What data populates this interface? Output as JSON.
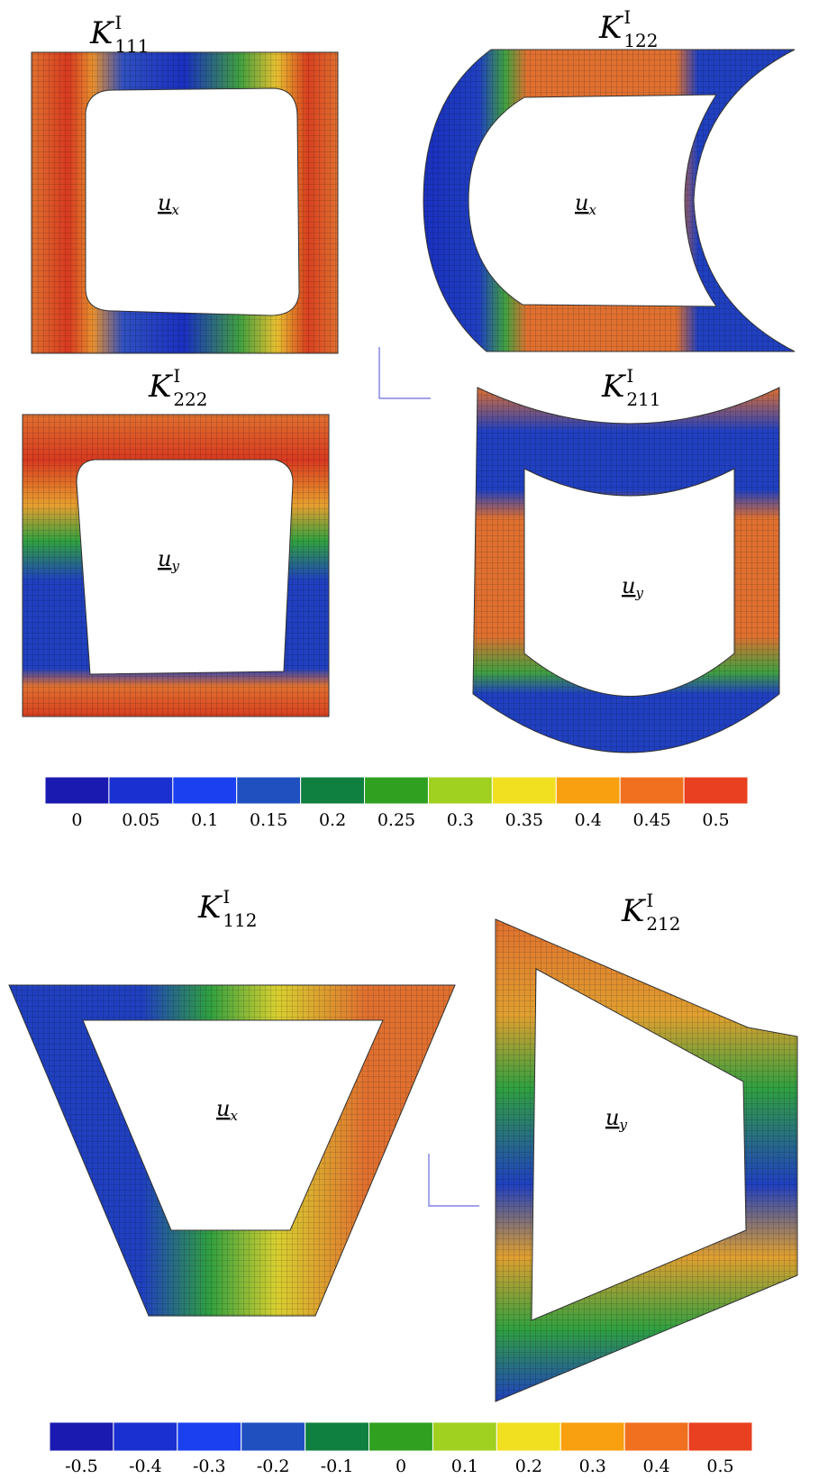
{
  "panels": [
    {
      "title": {
        "base": "K",
        "sup": "I",
        "sub": "111"
      },
      "label": {
        "base": "u",
        "sub": "x"
      }
    },
    {
      "title": {
        "base": "K",
        "sup": "I",
        "sub": "122"
      },
      "label": {
        "base": "u",
        "sub": "x"
      }
    },
    {
      "title": {
        "base": "K",
        "sup": "I",
        "sub": "222"
      },
      "label": {
        "base": "u",
        "sub": "y"
      }
    },
    {
      "title": {
        "base": "K",
        "sup": "I",
        "sub": "211"
      },
      "label": {
        "base": "u",
        "sub": "y"
      }
    },
    {
      "title": {
        "base": "K",
        "sup": "I",
        "sub": "112"
      },
      "label": {
        "base": "u",
        "sub": "x"
      }
    },
    {
      "title": {
        "base": "K",
        "sup": "I",
        "sub": "212"
      },
      "label": {
        "base": "u",
        "sub": "y"
      }
    }
  ],
  "colorbars": [
    {
      "colors": [
        "#1a1ab0",
        "#1a30d0",
        "#1a40f0",
        "#2050c0",
        "#108040",
        "#30a020",
        "#a0d020",
        "#f0e020",
        "#f8a010",
        "#f07020",
        "#e84020"
      ],
      "labels": [
        "0",
        "0.05",
        "0.1",
        "0.15",
        "0.2",
        "0.25",
        "0.3",
        "0.35",
        "0.4",
        "0.45",
        "0.5"
      ]
    },
    {
      "colors": [
        "#1a1ab0",
        "#1a30d0",
        "#1a40f0",
        "#2050c0",
        "#108040",
        "#30a020",
        "#a0d020",
        "#f0e020",
        "#f8a010",
        "#f07020",
        "#e84020"
      ],
      "labels": [
        "-0.5",
        "-0.4",
        "-0.3",
        "-0.2",
        "-0.1",
        "0",
        "0.1",
        "0.2",
        "0.3",
        "0.4",
        "0.5"
      ]
    }
  ]
}
